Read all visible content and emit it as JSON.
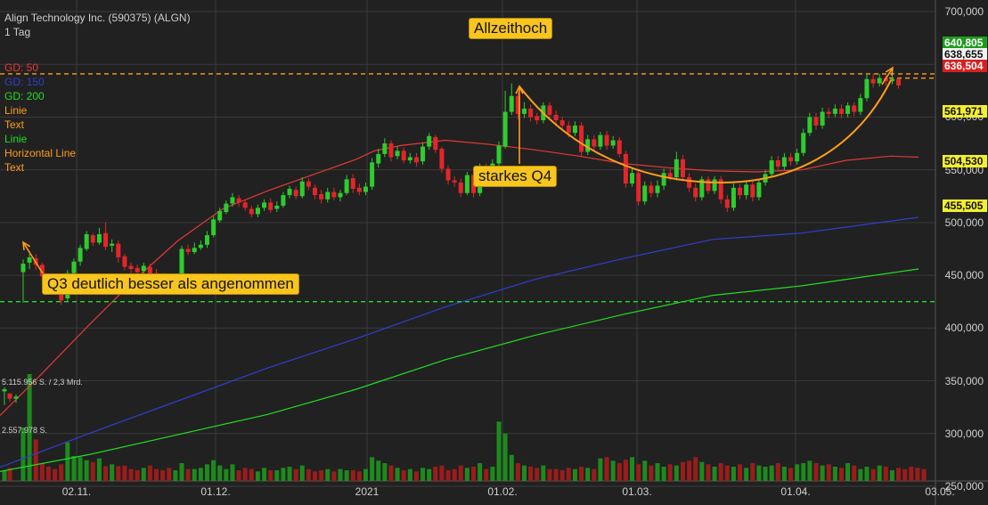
{
  "header": {
    "title": "Align Technology Inc. (590375) (ALGN)",
    "interval": "1 Tag"
  },
  "legend": [
    {
      "label": "GD: 50",
      "color": "#e53935"
    },
    {
      "label": "GD: 150",
      "color": "#2f3fcf"
    },
    {
      "label": "GD: 200",
      "color": "#22dd22"
    },
    {
      "label": "Linie",
      "color": "#ff9e1b"
    },
    {
      "label": "Text",
      "color": "#ff9e1b"
    },
    {
      "label": "Linie",
      "color": "#22dd22"
    },
    {
      "label": "Horizontal Line",
      "color": "#ff9e1b"
    },
    {
      "label": "Text",
      "color": "#ff9e1b"
    }
  ],
  "annotations": {
    "ath": "Allzeithoch",
    "q4": "starkes Q4",
    "q3": "Q3 deutlich besser als angenommen"
  },
  "price_tags": [
    {
      "label": "640,805",
      "bg": "#1f9b1f",
      "fg": "#ffffff",
      "value": 640.805
    },
    {
      "label": "638,655",
      "bg": "#f3f3f3",
      "fg": "#111111",
      "value": 638.655
    },
    {
      "label": "636,504",
      "bg": "#d81f1f",
      "fg": "#ffffff",
      "value": 636.504
    },
    {
      "label": "561,971",
      "bg": "#f4ef2e",
      "fg": "#111111",
      "value": 561.971
    },
    {
      "label": "504,530",
      "bg": "#f4ef2e",
      "fg": "#111111",
      "value": 504.53
    },
    {
      "label": "455,505",
      "bg": "#f4ef2e",
      "fg": "#111111",
      "value": 455.505
    }
  ],
  "volume_labels": [
    "5.115.956 S. / 2,3 Mrd.",
    "2.557.978 S."
  ],
  "chart_data": {
    "type": "candlestick",
    "y_ticks": [
      {
        "label": "700,000",
        "value": 700
      },
      {
        "label": "650,000",
        "value": 650
      },
      {
        "label": "600,000",
        "value": 600
      },
      {
        "label": "550,000",
        "value": 550
      },
      {
        "label": "500,000",
        "value": 500
      },
      {
        "label": "450,000",
        "value": 450
      },
      {
        "label": "400,000",
        "value": 400
      },
      {
        "label": "350,000",
        "value": 350
      },
      {
        "label": "300,000",
        "value": 300
      },
      {
        "label": "250,000",
        "value": 250
      }
    ],
    "x_ticks": [
      "02.11.",
      "01.12.",
      "2021",
      "01.02.",
      "01.03.",
      "01.04.",
      "03.05."
    ],
    "ylim": [
      250,
      700
    ],
    "horizontal_lines": [
      {
        "value": 641,
        "color": "#ff9e1b"
      },
      {
        "value": 425,
        "color": "#22dd22"
      }
    ],
    "gap_candles": [
      [
        340,
        342,
        344,
        327
      ],
      [
        338,
        333,
        338,
        330
      ],
      [
        333,
        335,
        337,
        329
      ]
    ],
    "candles": [
      [
        453,
        461,
        465,
        424
      ],
      [
        462,
        467,
        470,
        456
      ],
      [
        466,
        460,
        470,
        455
      ],
      [
        460,
        449,
        462,
        445
      ],
      [
        448,
        444,
        450,
        440
      ],
      [
        443,
        437,
        446,
        432
      ],
      [
        438,
        426,
        441,
        422
      ],
      [
        428,
        452,
        455,
        425
      ],
      [
        452,
        463,
        466,
        450
      ],
      [
        463,
        476,
        479,
        459
      ],
      [
        475,
        489,
        492,
        473
      ],
      [
        488,
        481,
        490,
        478
      ],
      [
        481,
        489,
        495,
        479
      ],
      [
        490,
        477,
        500,
        474
      ],
      [
        478,
        480,
        484,
        472
      ],
      [
        480,
        467,
        483,
        462
      ],
      [
        468,
        458,
        470,
        455
      ],
      [
        459,
        456,
        462,
        452
      ],
      [
        457,
        453,
        460,
        449
      ],
      [
        454,
        459,
        462,
        451
      ],
      [
        458,
        451,
        461,
        448
      ],
      [
        452,
        448,
        456,
        445
      ],
      [
        449,
        445,
        452,
        441
      ],
      [
        446,
        443,
        449,
        439
      ],
      [
        444,
        448,
        451,
        441
      ],
      [
        448,
        475,
        478,
        446
      ],
      [
        475,
        472,
        479,
        469
      ],
      [
        472,
        476,
        481,
        470
      ],
      [
        476,
        479,
        483,
        474
      ],
      [
        479,
        488,
        492,
        476
      ],
      [
        488,
        503,
        506,
        486
      ],
      [
        502,
        511,
        514,
        500
      ],
      [
        510,
        518,
        521,
        508
      ],
      [
        518,
        524,
        528,
        515
      ],
      [
        523,
        519,
        526,
        515
      ],
      [
        519,
        514,
        522,
        511
      ],
      [
        513,
        508,
        516,
        505
      ],
      [
        508,
        514,
        517,
        505
      ],
      [
        514,
        519,
        522,
        511
      ],
      [
        519,
        512,
        523,
        509
      ],
      [
        513,
        516,
        520,
        510
      ],
      [
        516,
        526,
        529,
        514
      ],
      [
        526,
        532,
        535,
        523
      ],
      [
        531,
        525,
        534,
        522
      ],
      [
        525,
        539,
        543,
        523
      ],
      [
        539,
        534,
        542,
        531
      ],
      [
        533,
        526,
        536,
        522
      ],
      [
        527,
        522,
        531,
        518
      ],
      [
        522,
        529,
        533,
        519
      ],
      [
        529,
        524,
        533,
        521
      ],
      [
        524,
        528,
        531,
        520
      ],
      [
        528,
        541,
        545,
        526
      ],
      [
        542,
        532,
        546,
        528
      ],
      [
        533,
        529,
        537,
        526
      ],
      [
        529,
        534,
        538,
        526
      ],
      [
        534,
        557,
        561,
        531
      ],
      [
        556,
        565,
        570,
        552
      ],
      [
        565,
        575,
        580,
        562
      ],
      [
        575,
        562,
        578,
        558
      ],
      [
        563,
        568,
        572,
        560
      ],
      [
        568,
        559,
        571,
        556
      ],
      [
        559,
        562,
        566,
        556
      ],
      [
        562,
        557,
        566,
        553
      ],
      [
        558,
        572,
        576,
        555
      ],
      [
        572,
        582,
        585,
        569
      ],
      [
        581,
        569,
        583,
        566
      ],
      [
        570,
        551,
        572,
        547
      ],
      [
        551,
        540,
        554,
        536
      ],
      [
        540,
        538,
        544,
        534
      ],
      [
        538,
        528,
        542,
        524
      ],
      [
        528,
        545,
        548,
        526
      ],
      [
        545,
        528,
        548,
        524
      ],
      [
        528,
        552,
        556,
        525
      ],
      [
        552,
        548,
        556,
        544
      ],
      [
        548,
        556,
        560,
        544
      ],
      [
        556,
        573,
        577,
        553
      ],
      [
        572,
        605,
        625,
        570
      ],
      [
        605,
        620,
        632,
        602
      ],
      [
        620,
        603,
        624,
        598
      ],
      [
        603,
        608,
        614,
        599
      ],
      [
        608,
        600,
        612,
        596
      ],
      [
        601,
        597,
        604,
        593
      ],
      [
        597,
        611,
        614,
        594
      ],
      [
        611,
        602,
        614,
        598
      ],
      [
        602,
        597,
        606,
        593
      ],
      [
        597,
        592,
        600,
        588
      ],
      [
        592,
        585,
        596,
        581
      ],
      [
        585,
        592,
        596,
        582
      ],
      [
        592,
        567,
        595,
        563
      ],
      [
        567,
        579,
        583,
        564
      ],
      [
        579,
        572,
        583,
        568
      ],
      [
        572,
        583,
        586,
        569
      ],
      [
        583,
        573,
        587,
        569
      ],
      [
        573,
        578,
        582,
        570
      ],
      [
        578,
        565,
        581,
        562
      ],
      [
        565,
        537,
        568,
        533
      ],
      [
        537,
        547,
        551,
        534
      ],
      [
        547,
        520,
        551,
        516
      ],
      [
        520,
        535,
        539,
        517
      ],
      [
        535,
        528,
        539,
        524
      ],
      [
        528,
        535,
        540,
        524
      ],
      [
        535,
        547,
        551,
        531
      ],
      [
        547,
        543,
        551,
        540
      ],
      [
        543,
        560,
        567,
        540
      ],
      [
        560,
        543,
        564,
        539
      ],
      [
        543,
        533,
        547,
        529
      ],
      [
        533,
        524,
        537,
        520
      ],
      [
        524,
        541,
        544,
        521
      ],
      [
        541,
        530,
        544,
        527
      ],
      [
        530,
        541,
        544,
        527
      ],
      [
        541,
        522,
        544,
        518
      ],
      [
        522,
        514,
        526,
        510
      ],
      [
        514,
        533,
        537,
        511
      ],
      [
        533,
        526,
        537,
        522
      ],
      [
        526,
        536,
        540,
        522
      ],
      [
        536,
        524,
        540,
        520
      ],
      [
        524,
        538,
        541,
        521
      ],
      [
        538,
        546,
        550,
        535
      ],
      [
        546,
        559,
        563,
        543
      ],
      [
        559,
        553,
        563,
        550
      ],
      [
        553,
        562,
        566,
        550
      ],
      [
        562,
        558,
        566,
        554
      ],
      [
        558,
        566,
        570,
        555
      ],
      [
        566,
        585,
        589,
        563
      ],
      [
        585,
        600,
        604,
        582
      ],
      [
        600,
        592,
        604,
        588
      ],
      [
        592,
        605,
        609,
        589
      ],
      [
        605,
        603,
        609,
        599
      ],
      [
        603,
        608,
        612,
        600
      ],
      [
        608,
        603,
        612,
        599
      ],
      [
        603,
        611,
        614,
        600
      ],
      [
        611,
        605,
        614,
        601
      ],
      [
        605,
        618,
        622,
        602
      ],
      [
        618,
        636,
        641,
        615
      ],
      [
        636,
        632,
        641,
        628
      ],
      [
        632,
        637,
        641,
        629
      ],
      [
        637,
        634,
        640,
        630
      ],
      [
        634,
        636,
        641,
        631
      ],
      [
        636,
        630,
        638,
        627
      ]
    ],
    "ma50": [
      [
        0,
        317
      ],
      [
        45,
        355
      ],
      [
        100,
        403
      ],
      [
        150,
        445
      ],
      [
        200,
        483
      ],
      [
        250,
        513
      ],
      [
        300,
        530
      ],
      [
        350,
        545
      ],
      [
        400,
        560
      ],
      [
        420,
        568
      ],
      [
        450,
        573
      ],
      [
        500,
        578
      ],
      [
        550,
        574
      ],
      [
        600,
        569
      ],
      [
        650,
        563
      ],
      [
        700,
        556
      ],
      [
        750,
        552
      ],
      [
        800,
        549
      ],
      [
        850,
        548
      ],
      [
        900,
        550
      ],
      [
        950,
        559
      ],
      [
        1000,
        563
      ],
      [
        1031,
        562
      ]
    ],
    "ma150": [
      [
        0,
        268
      ],
      [
        100,
        300
      ],
      [
        200,
        331
      ],
      [
        300,
        362
      ],
      [
        400,
        390
      ],
      [
        500,
        420
      ],
      [
        600,
        446
      ],
      [
        700,
        466
      ],
      [
        800,
        484
      ],
      [
        900,
        490
      ],
      [
        1031,
        505
      ]
    ],
    "ma200": [
      [
        0,
        264
      ],
      [
        100,
        280
      ],
      [
        200,
        299
      ],
      [
        300,
        318
      ],
      [
        400,
        342
      ],
      [
        500,
        370
      ],
      [
        600,
        393
      ],
      [
        700,
        413
      ],
      [
        800,
        431
      ],
      [
        900,
        440
      ],
      [
        1031,
        456
      ]
    ],
    "volume": {
      "gap": [
        18,
        22
      ],
      "bars": [
        90,
        180,
        70,
        30,
        24,
        20,
        28,
        65,
        42,
        40,
        35,
        32,
        38,
        25,
        28,
        25,
        26,
        20,
        18,
        22,
        26,
        20,
        18,
        22,
        18,
        30,
        20,
        20,
        22,
        28,
        35,
        26,
        20,
        28,
        18,
        22,
        20,
        16,
        22,
        18,
        18,
        22,
        24,
        20,
        26,
        20,
        16,
        18,
        20,
        16,
        20,
        18,
        18,
        16,
        20,
        40,
        34,
        30,
        26,
        22,
        18,
        20,
        16,
        22,
        20,
        24,
        26,
        18,
        20,
        26,
        22,
        24,
        30,
        20,
        24,
        100,
        80,
        44,
        30,
        26,
        24,
        22,
        26,
        20,
        20,
        18,
        22,
        20,
        24,
        22,
        20,
        38,
        40,
        34,
        30,
        36,
        40,
        28,
        34,
        26,
        30,
        24,
        28,
        26,
        32,
        34,
        40,
        32,
        28,
        24,
        30,
        26,
        24,
        28,
        22,
        30,
        26,
        24,
        26,
        30,
        24,
        22,
        28,
        30,
        34,
        30,
        26,
        28,
        24,
        22,
        30,
        26,
        20,
        24,
        20,
        26,
        24,
        18,
        22,
        20,
        24,
        22,
        20
      ],
      "max": 180
    }
  }
}
